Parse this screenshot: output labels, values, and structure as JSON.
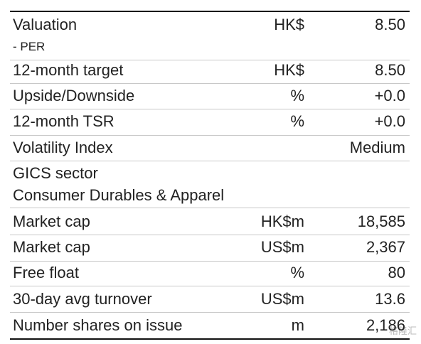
{
  "table": {
    "rows": [
      {
        "label": "Valuation",
        "note": "- PER",
        "unit": "HK$",
        "value": "8.50"
      },
      {
        "label": "12-month target",
        "unit": "HK$",
        "value": "8.50"
      },
      {
        "label": "Upside/Downside",
        "unit": "%",
        "value": "+0.0"
      },
      {
        "label": "12-month TSR",
        "unit": "%",
        "value": "+0.0"
      },
      {
        "label": "Volatility Index",
        "value": "Medium"
      },
      {
        "label": "GICS sector",
        "detail": "Consumer Durables & Apparel"
      },
      {
        "label": "Market cap",
        "unit": "HK$m",
        "value": "18,585"
      },
      {
        "label": "Market cap",
        "unit": "US$m",
        "value": "2,367"
      },
      {
        "label": "Free float",
        "unit": "%",
        "value": "80"
      },
      {
        "label": "30-day avg turnover",
        "unit": "US$m",
        "value": "13.6"
      },
      {
        "label": "Number shares on issue",
        "unit": "m",
        "value": "2,186"
      }
    ]
  },
  "watermark": "格隆汇"
}
